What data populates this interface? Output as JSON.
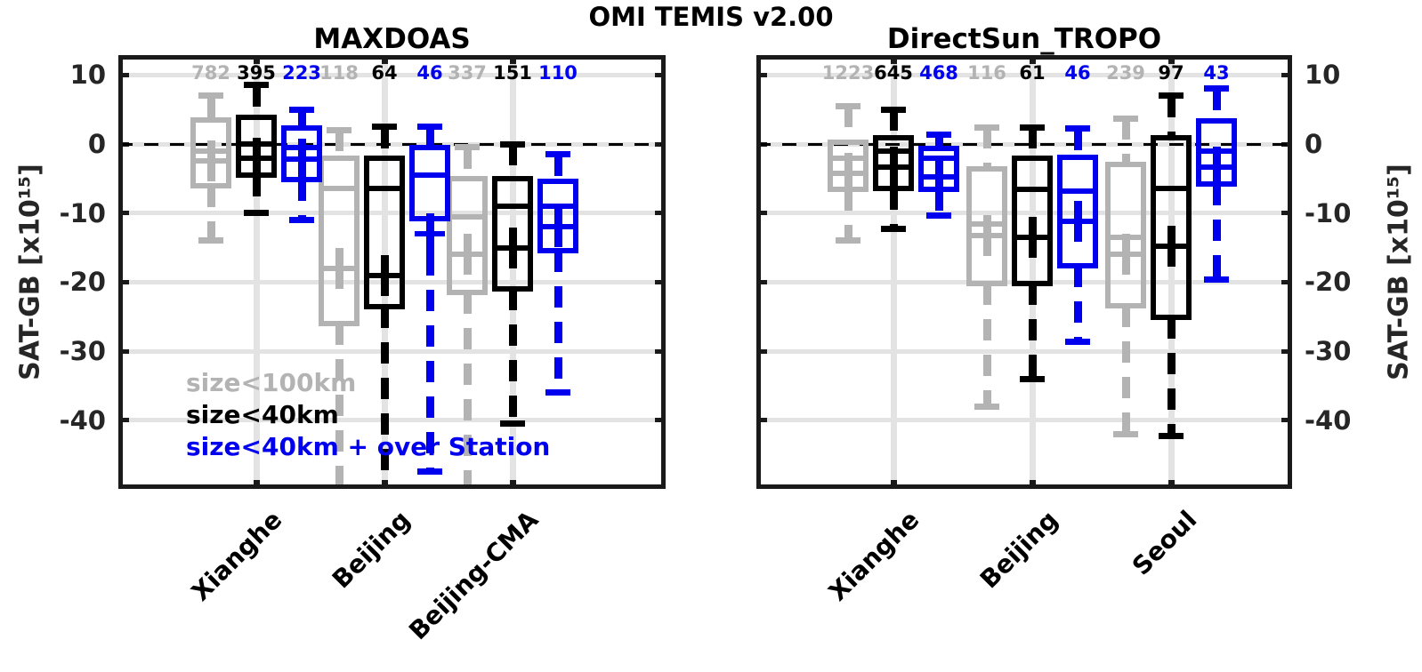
{
  "figure": {
    "title": "OMI TEMIS v2.00",
    "y_axis_label": "SAT-GB [x10¹⁵]",
    "colors": {
      "gray_series": "#b3b3b3",
      "black_series": "#000000",
      "blue_series": "#0000ee",
      "gridline": "#e3e3e3",
      "axis_frame": "#1a1a1a",
      "zero_line": "#000000"
    },
    "legend": [
      {
        "label": "size<100km",
        "color": "#b3b3b3"
      },
      {
        "label": "size<40km",
        "color": "#000000"
      },
      {
        "label": "size<40km + over Station",
        "color": "#0000ee"
      }
    ]
  },
  "chart_data": [
    {
      "type": "box",
      "title": "MAXDOAS",
      "ylabel": "SAT-GB [x10¹⁵]",
      "y_tick_side": "left",
      "yticks": [
        10,
        0,
        -10,
        -20,
        -30,
        -40
      ],
      "ylim": [
        -50,
        12.9
      ],
      "zero_line_dashed": true,
      "grid": true,
      "legend_visible": true,
      "categories": [
        "Xianghe",
        "Beijing",
        "Beijing-CMA"
      ],
      "series": [
        {
          "name": "size<100km",
          "color": "#b3b3b3",
          "boxes": [
            {
              "n": 782,
              "whisker_top": 7,
              "q3": 3.5,
              "median": -1,
              "mean": -2.5,
              "q1": -6,
              "whisker_bottom": -14,
              "bottom_clipped": false
            },
            {
              "n": 118,
              "whisker_top": 2,
              "q3": -2,
              "median": -6.5,
              "mean": -18,
              "q1": -26,
              "whisker_bottom": -50,
              "bottom_clipped": true
            },
            {
              "n": 337,
              "whisker_top": -0.5,
              "q3": -5,
              "median": -10.5,
              "mean": -16,
              "q1": -21.5,
              "whisker_bottom": -47,
              "bottom_clipped": true
            }
          ]
        },
        {
          "name": "size<40km",
          "color": "#000000",
          "boxes": [
            {
              "n": 395,
              "whisker_top": 8.5,
              "q3": 3.8,
              "median": 0,
              "mean": -2,
              "q1": -4.5,
              "whisker_bottom": -10,
              "bottom_clipped": false
            },
            {
              "n": 64,
              "whisker_top": 2.5,
              "q3": -2,
              "median": -6.5,
              "mean": -19,
              "q1": -23.5,
              "whisker_bottom": -50,
              "bottom_clipped": true
            },
            {
              "n": 151,
              "whisker_top": 0,
              "q3": -5,
              "median": -9,
              "mean": -15,
              "q1": -21,
              "whisker_bottom": -40.5,
              "bottom_clipped": false
            }
          ]
        },
        {
          "name": "size<40km + over Station",
          "color": "#0000ee",
          "boxes": [
            {
              "n": 223,
              "whisker_top": 5,
              "q3": 2.3,
              "median": -0.5,
              "mean": -2.2,
              "q1": -5.2,
              "whisker_bottom": -11,
              "bottom_clipped": false
            },
            {
              "n": 46,
              "whisker_top": 2.5,
              "q3": -0.5,
              "median": -4.5,
              "mean": -13,
              "q1": -10.8,
              "whisker_bottom": -47.5,
              "bottom_clipped": false
            },
            {
              "n": 110,
              "whisker_top": -1.5,
              "q3": -5.4,
              "median": -9,
              "mean": -12,
              "q1": -15.4,
              "whisker_bottom": -36,
              "bottom_clipped": false
            }
          ]
        }
      ]
    },
    {
      "type": "box",
      "title": "DirectSun_TROPO",
      "ylabel": "SAT-GB [x10¹⁵]",
      "y_tick_side": "right",
      "yticks": [
        10,
        0,
        -10,
        -20,
        -30,
        -40
      ],
      "ylim": [
        -50,
        12.9
      ],
      "zero_line_dashed": true,
      "grid": true,
      "legend_visible": false,
      "categories": [
        "Xianghe",
        "Beijing",
        "Seoul"
      ],
      "series": [
        {
          "name": "size<100km",
          "color": "#b3b3b3",
          "boxes": [
            {
              "n": 1223,
              "whisker_top": 5.5,
              "q3": 0.2,
              "median": -2,
              "mean": -4.3,
              "q1": -6.6,
              "whisker_bottom": -14,
              "bottom_clipped": false
            },
            {
              "n": 116,
              "whisker_top": 2.4,
              "q3": -3.6,
              "median": -11.6,
              "mean": -13.2,
              "q1": -20.2,
              "whisker_bottom": -38,
              "bottom_clipped": false
            },
            {
              "n": 239,
              "whisker_top": 3.7,
              "q3": -3,
              "median": -13.5,
              "mean": -16,
              "q1": -23.4,
              "whisker_bottom": -42,
              "bottom_clipped": false
            }
          ]
        },
        {
          "name": "size<40km",
          "color": "#000000",
          "boxes": [
            {
              "n": 645,
              "whisker_top": 5,
              "q3": 0.9,
              "median": -1,
              "mean": -3.4,
              "q1": -6.4,
              "whisker_bottom": -12.3,
              "bottom_clipped": false
            },
            {
              "n": 61,
              "whisker_top": 2.4,
              "q3": -2.1,
              "median": -6.6,
              "mean": -13.5,
              "q1": -20.2,
              "whisker_bottom": -34,
              "bottom_clipped": false
            },
            {
              "n": 97,
              "whisker_top": 7,
              "q3": 0.9,
              "median": -6.4,
              "mean": -14.8,
              "q1": -25.1,
              "whisker_bottom": -42.3,
              "bottom_clipped": false
            }
          ]
        },
        {
          "name": "size<40km + over Station",
          "color": "#0000ee",
          "boxes": [
            {
              "n": 468,
              "whisker_top": 1.3,
              "q3": -0.6,
              "median": -2.1,
              "mean": -4.7,
              "q1": -6.6,
              "whisker_bottom": -10.3,
              "bottom_clipped": false
            },
            {
              "n": 46,
              "whisker_top": 2.2,
              "q3": -1.9,
              "median": -6.8,
              "mean": -11.2,
              "q1": -17.6,
              "whisker_bottom": -28.6,
              "bottom_clipped": false
            },
            {
              "n": 43,
              "whisker_top": 8,
              "q3": 3.3,
              "median": -1,
              "mean": -3.4,
              "q1": -5.8,
              "whisker_bottom": -19.6,
              "bottom_clipped": false
            }
          ]
        }
      ]
    }
  ]
}
